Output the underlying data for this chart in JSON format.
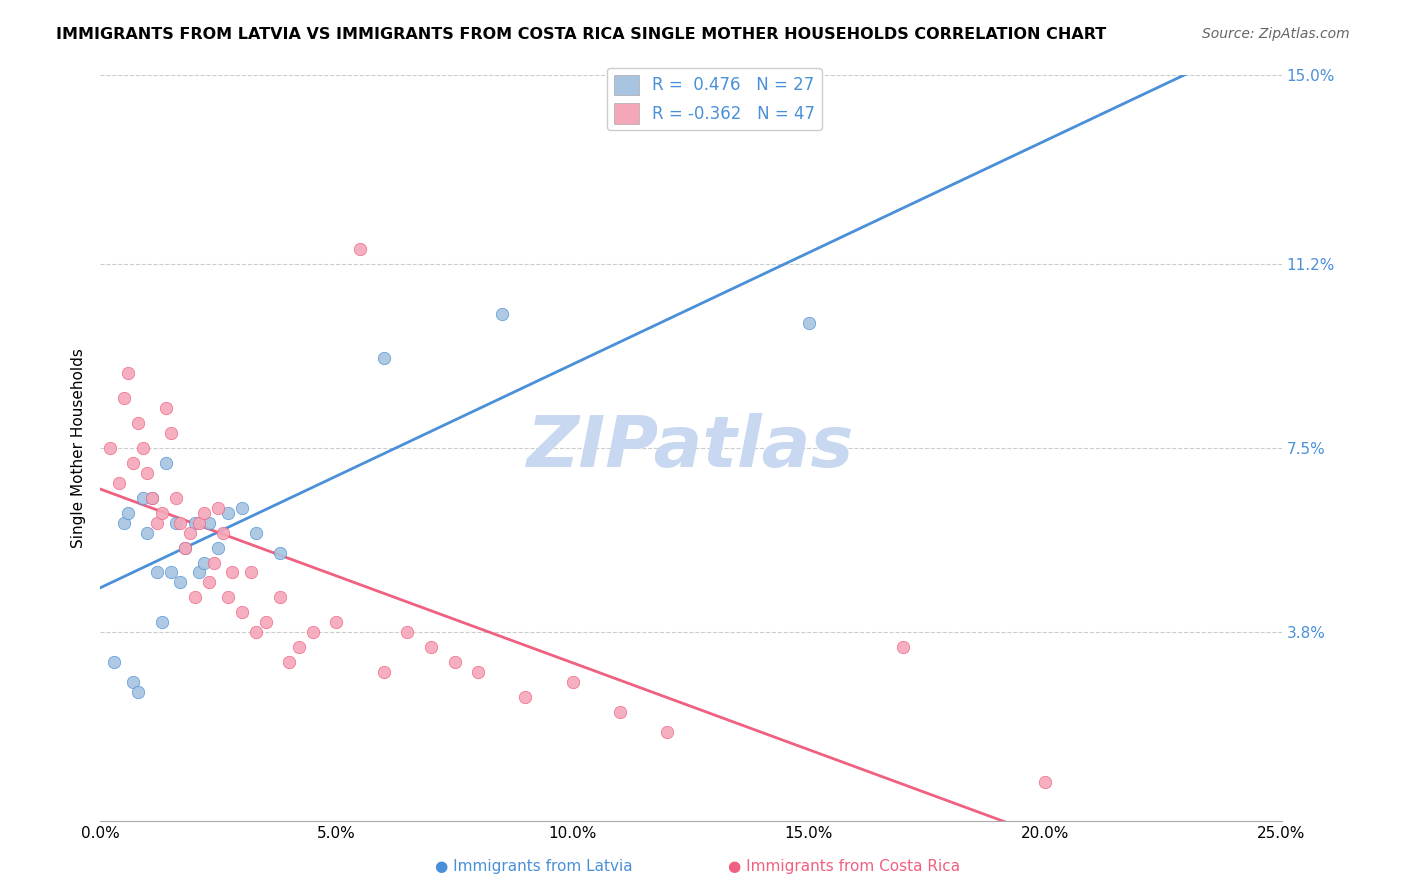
{
  "title": "IMMIGRANTS FROM LATVIA VS IMMIGRANTS FROM COSTA RICA SINGLE MOTHER HOUSEHOLDS CORRELATION CHART",
  "source": "Source: ZipAtlas.com",
  "xlabel_bottom": "",
  "ylabel": "Single Mother Households",
  "xlim": [
    0.0,
    0.25
  ],
  "ylim": [
    0.0,
    0.15
  ],
  "xticks": [
    0.0,
    0.05,
    0.1,
    0.15,
    0.2,
    0.25
  ],
  "yticks_right": [
    0.038,
    0.075,
    0.112,
    0.15
  ],
  "ytick_labels_right": [
    "3.8%",
    "7.5%",
    "11.2%",
    "15.0%"
  ],
  "xtick_labels": [
    "0.0%",
    "5.0%",
    "10.0%",
    "15.0%",
    "20.0%",
    "25.0%"
  ],
  "r_latvia": 0.476,
  "n_latvia": 27,
  "r_costa_rica": -0.362,
  "n_costa_rica": 47,
  "color_latvia": "#a8c4e0",
  "color_costa_rica": "#f4a7b9",
  "line_color_latvia": "#4a90d9",
  "line_color_costa_rica": "#f06080",
  "watermark": "ZIPatlas",
  "watermark_color": "#c8d8f0",
  "latvia_scatter_x": [
    0.003,
    0.005,
    0.006,
    0.007,
    0.008,
    0.009,
    0.01,
    0.011,
    0.012,
    0.013,
    0.014,
    0.015,
    0.016,
    0.017,
    0.018,
    0.02,
    0.021,
    0.022,
    0.023,
    0.025,
    0.027,
    0.03,
    0.033,
    0.038,
    0.06,
    0.085,
    0.15
  ],
  "latvia_scatter_y": [
    0.032,
    0.06,
    0.062,
    0.028,
    0.026,
    0.065,
    0.058,
    0.065,
    0.05,
    0.04,
    0.072,
    0.05,
    0.06,
    0.048,
    0.055,
    0.06,
    0.05,
    0.052,
    0.06,
    0.055,
    0.062,
    0.063,
    0.058,
    0.054,
    0.093,
    0.102,
    0.1
  ],
  "costa_rica_scatter_x": [
    0.002,
    0.004,
    0.005,
    0.006,
    0.007,
    0.008,
    0.009,
    0.01,
    0.011,
    0.012,
    0.013,
    0.014,
    0.015,
    0.016,
    0.017,
    0.018,
    0.019,
    0.02,
    0.021,
    0.022,
    0.023,
    0.024,
    0.025,
    0.026,
    0.027,
    0.028,
    0.03,
    0.032,
    0.033,
    0.035,
    0.038,
    0.04,
    0.042,
    0.045,
    0.05,
    0.055,
    0.06,
    0.065,
    0.07,
    0.075,
    0.08,
    0.09,
    0.1,
    0.11,
    0.12,
    0.17,
    0.2
  ],
  "costa_rica_scatter_y": [
    0.075,
    0.068,
    0.085,
    0.09,
    0.072,
    0.08,
    0.075,
    0.07,
    0.065,
    0.06,
    0.062,
    0.083,
    0.078,
    0.065,
    0.06,
    0.055,
    0.058,
    0.045,
    0.06,
    0.062,
    0.048,
    0.052,
    0.063,
    0.058,
    0.045,
    0.05,
    0.042,
    0.05,
    0.038,
    0.04,
    0.045,
    0.032,
    0.035,
    0.038,
    0.04,
    0.115,
    0.03,
    0.038,
    0.035,
    0.032,
    0.03,
    0.025,
    0.028,
    0.022,
    0.018,
    0.035,
    0.008
  ]
}
